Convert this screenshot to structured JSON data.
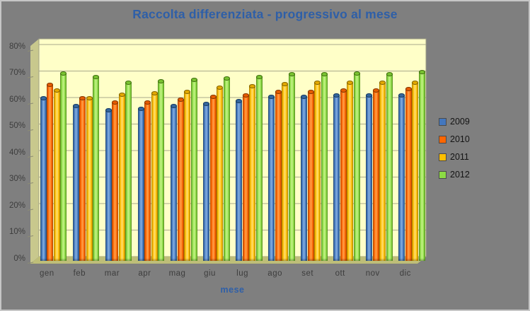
{
  "title": "Raccolta differenziata - progressivo al mese",
  "chart_data": {
    "type": "bar",
    "title": "Raccolta differenziata - progressivo al mese",
    "xlabel": "mese",
    "ylabel": "",
    "ylim": [
      0,
      80
    ],
    "grid": true,
    "legend_position": "right",
    "y_ticks": [
      "0%",
      "10%",
      "20%",
      "30%",
      "40%",
      "50%",
      "60%",
      "70%",
      "80%"
    ],
    "categories": [
      "gen",
      "feb",
      "mar",
      "apr",
      "mag",
      "giu",
      "lug",
      "ago",
      "set",
      "ott",
      "nov",
      "dic"
    ],
    "series": [
      {
        "name": "2009",
        "color": "#4377BE",
        "color_light": "#86AFE0",
        "color_dark": "#2A527E",
        "color_cap": "#34679E",
        "color_edge": "#17395C",
        "values": [
          60.5,
          57.5,
          56,
          56.5,
          57.5,
          58.5,
          59.5,
          61,
          61,
          61.5,
          61.5,
          61.5
        ]
      },
      {
        "name": "2010",
        "color": "#FF6600",
        "color_light": "#FFA14D",
        "color_dark": "#B94A00",
        "color_cap": "#E65B00",
        "color_edge": "#7E3700",
        "values": [
          65.5,
          60.5,
          59,
          59,
          60,
          61,
          61.5,
          63,
          63,
          63.5,
          63.5,
          64
        ]
      },
      {
        "name": "2011",
        "color": "#FFBF00",
        "color_light": "#FFDF73",
        "color_dark": "#B78900",
        "color_cap": "#E2A900",
        "color_edge": "#7E6000",
        "values": [
          63.5,
          60.5,
          62,
          62.5,
          63,
          64.5,
          65,
          66,
          66.5,
          66.5,
          66.5,
          66.5
        ]
      },
      {
        "name": "2012",
        "color": "#8CDB44",
        "color_light": "#C6F388",
        "color_dark": "#5B9A1F",
        "color_cap": "#79C331",
        "color_edge": "#3F6B10",
        "values": [
          70,
          68.5,
          66.5,
          67,
          67.5,
          68,
          68.5,
          69.5,
          69.5,
          70,
          69.5,
          70.5
        ]
      }
    ]
  },
  "theme": {
    "background": "#7F7F7F",
    "border": "#C6C6C6",
    "back_wall": "#FFFFC8",
    "side_wall": "#C8C88D",
    "floor": "#BEBE78",
    "wall_edge": "#A0A086",
    "gridline": "#A9A98C",
    "tick": "#8E8E74",
    "title_color": "#2E5FA8",
    "axis_text_color": "#3D3D3D",
    "legend_text_color": "#141414"
  }
}
